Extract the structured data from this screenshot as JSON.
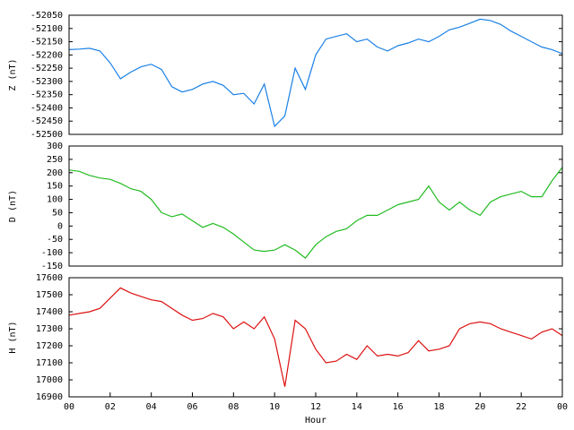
{
  "chart_data": [
    {
      "type": "line",
      "ylabel": "Z (nT)",
      "color": "#1a80e6",
      "xlim": [
        0,
        24
      ],
      "ylim": [
        -52500,
        -52050
      ],
      "yticks": [
        -52500,
        -52450,
        -52400,
        -52350,
        -52300,
        -52250,
        -52200,
        -52150,
        -52100,
        -52050
      ],
      "x": [
        0,
        0.5,
        1,
        1.5,
        2,
        2.5,
        3,
        3.5,
        4,
        4.5,
        5,
        5.5,
        6,
        6.5,
        7,
        7.5,
        8,
        8.5,
        9,
        9.5,
        10,
        10.5,
        11,
        11.5,
        12,
        12.5,
        13,
        13.5,
        14,
        14.5,
        15,
        15.5,
        16,
        16.5,
        17,
        17.5,
        18,
        18.5,
        19,
        19.5,
        20,
        20.5,
        21,
        21.5,
        22,
        22.5,
        23,
        23.5,
        24
      ],
      "values": [
        -52180,
        -52178,
        -52175,
        -52185,
        -52230,
        -52290,
        -52265,
        -52245,
        -52235,
        -52255,
        -52320,
        -52340,
        -52330,
        -52310,
        -52300,
        -52315,
        -52350,
        -52345,
        -52385,
        -52310,
        -52470,
        -52430,
        -52250,
        -52330,
        -52200,
        -52140,
        -52130,
        -52120,
        -52150,
        -52140,
        -52170,
        -52185,
        -52165,
        -52155,
        -52140,
        -52150,
        -52130,
        -52105,
        -52095,
        -52080,
        -52065,
        -52070,
        -52085,
        -52110,
        -52130,
        -52150,
        -52170,
        -52180,
        -52195
      ]
    },
    {
      "type": "line",
      "ylabel": "D (nT)",
      "color": "#22bb22",
      "xlim": [
        0,
        24
      ],
      "ylim": [
        -150,
        300
      ],
      "yticks": [
        -150,
        -100,
        -50,
        0,
        50,
        100,
        150,
        200,
        250,
        300
      ],
      "x": [
        0,
        0.5,
        1,
        1.5,
        2,
        2.5,
        3,
        3.5,
        4,
        4.5,
        5,
        5.5,
        6,
        6.5,
        7,
        7.5,
        8,
        8.5,
        9,
        9.5,
        10,
        10.5,
        11,
        11.5,
        12,
        12.5,
        13,
        13.5,
        14,
        14.5,
        15,
        15.5,
        16,
        16.5,
        17,
        17.5,
        18,
        18.5,
        19,
        19.5,
        20,
        20.5,
        21,
        21.5,
        22,
        22.5,
        23,
        23.5,
        24
      ],
      "values": [
        210,
        205,
        190,
        180,
        175,
        160,
        140,
        130,
        100,
        50,
        35,
        45,
        20,
        -5,
        10,
        -5,
        -30,
        -60,
        -90,
        -95,
        -90,
        -70,
        -90,
        -120,
        -70,
        -40,
        -20,
        -10,
        20,
        40,
        40,
        60,
        80,
        90,
        100,
        150,
        90,
        60,
        90,
        60,
        40,
        90,
        110,
        120,
        130,
        110,
        110,
        170,
        220
      ]
    },
    {
      "type": "line",
      "ylabel": "H (nT)",
      "color": "#dd1111",
      "xlim": [
        0,
        24
      ],
      "xlabel": "Hour",
      "xticks": [
        {
          "value": 0,
          "label": "00"
        },
        {
          "value": 2,
          "label": "02"
        },
        {
          "value": 4,
          "label": "04"
        },
        {
          "value": 6,
          "label": "06"
        },
        {
          "value": 8,
          "label": "08"
        },
        10,
        12,
        14,
        16,
        18,
        20,
        22,
        {
          "value": 24,
          "label": "00"
        }
      ],
      "ylim": [
        16900,
        17600
      ],
      "yticks": [
        16900,
        17000,
        17100,
        17200,
        17300,
        17400,
        17500,
        17600
      ],
      "x": [
        0,
        0.5,
        1,
        1.5,
        2,
        2.5,
        3,
        3.5,
        4,
        4.5,
        5,
        5.5,
        6,
        6.5,
        7,
        7.5,
        8,
        8.5,
        9,
        9.5,
        10,
        10.5,
        11,
        11.5,
        12,
        12.5,
        13,
        13.5,
        14,
        14.5,
        15,
        15.5,
        16,
        16.5,
        17,
        17.5,
        18,
        18.5,
        19,
        19.5,
        20,
        20.5,
        21,
        21.5,
        22,
        22.5,
        23,
        23.5,
        24
      ],
      "values": [
        17380,
        17390,
        17400,
        17420,
        17480,
        17540,
        17510,
        17490,
        17470,
        17460,
        17420,
        17380,
        17350,
        17360,
        17390,
        17370,
        17300,
        17340,
        17300,
        17370,
        17240,
        16960,
        17350,
        17300,
        17180,
        17100,
        17110,
        17150,
        17120,
        17200,
        17140,
        17150,
        17140,
        17160,
        17230,
        17170,
        17180,
        17200,
        17300,
        17330,
        17340,
        17330,
        17300,
        17280,
        17260,
        17240,
        17280,
        17300,
        17260
      ]
    }
  ]
}
